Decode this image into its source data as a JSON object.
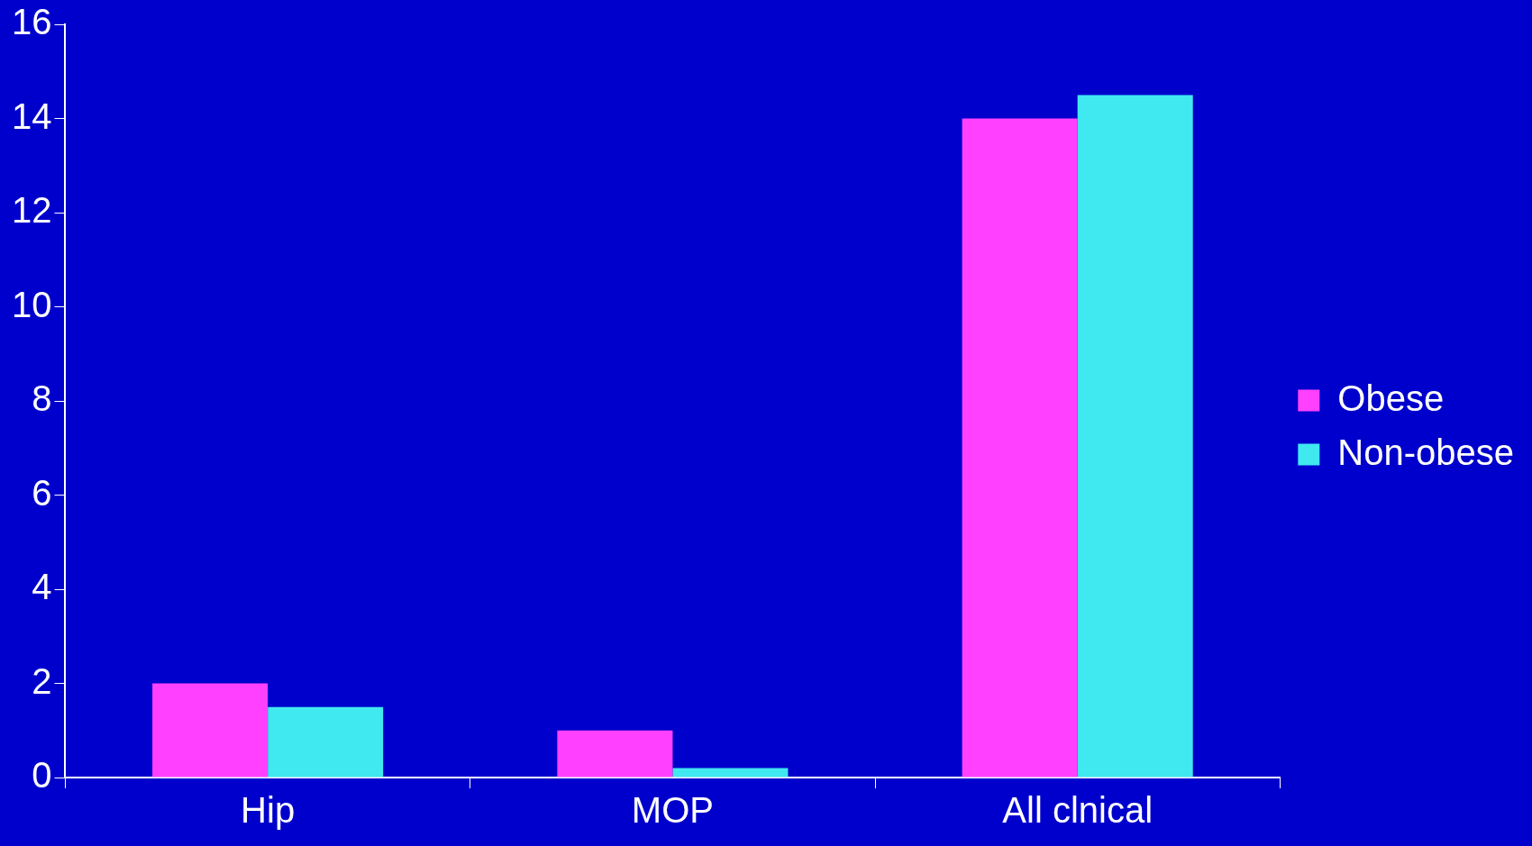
{
  "chart_data": {
    "type": "bar",
    "categories": [
      "Hip",
      "MOP",
      "All clnical"
    ],
    "series": [
      {
        "name": "Obese",
        "color": "#ff40ff",
        "values": [
          2,
          1,
          14
        ]
      },
      {
        "name": "Non-obese",
        "color": "#40e8f0",
        "values": [
          1.5,
          0.2,
          14.5
        ]
      }
    ],
    "ylim": [
      0,
      16
    ],
    "yticks": [
      0,
      2,
      4,
      6,
      8,
      10,
      12,
      14,
      16
    ],
    "grid": false,
    "legend": "right"
  }
}
